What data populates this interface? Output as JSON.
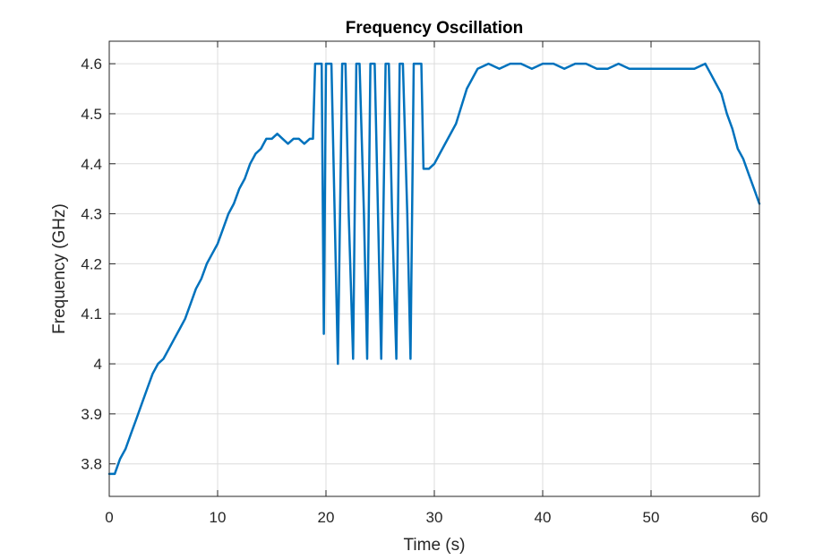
{
  "chart_data": {
    "type": "line",
    "title": "Frequency Oscillation",
    "xlabel": "Time (s)",
    "ylabel": "Frequency (GHz)",
    "xlim": [
      0,
      60
    ],
    "ylim": [
      3.735,
      4.645
    ],
    "xticks": [
      0,
      10,
      20,
      30,
      40,
      50,
      60
    ],
    "xtick_labels": [
      "0",
      "10",
      "20",
      "30",
      "40",
      "50",
      "60"
    ],
    "yticks": [
      3.8,
      3.9,
      4.0,
      4.1,
      4.2,
      4.3,
      4.4,
      4.5,
      4.6
    ],
    "ytick_labels": [
      "3.8",
      "3.9",
      "4",
      "4.1",
      "4.2",
      "4.3",
      "4.4",
      "4.5",
      "4.6"
    ],
    "grid": true,
    "line_color": "#0072BD",
    "series": [
      {
        "x": [
          0,
          0.5,
          1,
          1.5,
          2,
          2.5,
          3,
          3.5,
          4,
          4.5,
          5,
          5.5,
          6,
          6.5,
          7,
          7.5,
          8,
          8.5,
          9,
          9.5,
          10,
          10.5,
          11,
          11.5,
          12,
          12.5,
          13,
          13.5,
          14,
          14.5,
          15,
          15.5,
          16,
          16.5,
          17,
          17.5,
          18,
          18.5,
          18.8,
          19.0,
          19.6,
          19.8,
          20.0,
          20.5,
          20.8,
          21.1,
          21.5,
          21.8,
          22.1,
          22.5,
          22.8,
          23.1,
          23.5,
          23.8,
          24.1,
          24.5,
          24.8,
          25.1,
          25.5,
          25.8,
          26.1,
          26.5,
          26.8,
          27.1,
          27.5,
          27.8,
          28.1,
          28.5,
          28.8,
          29.0,
          29.5,
          30,
          30.5,
          31,
          32,
          33,
          34,
          35,
          36,
          37,
          38,
          39,
          40,
          41,
          42,
          43,
          44,
          45,
          46,
          47,
          48,
          49,
          50,
          51,
          52,
          53,
          54,
          55,
          55.5,
          56,
          56.5,
          57,
          57.5,
          58,
          58.5,
          59,
          59.5,
          60
        ],
        "y": [
          3.78,
          3.78,
          3.81,
          3.83,
          3.86,
          3.89,
          3.92,
          3.95,
          3.98,
          4.0,
          4.01,
          4.03,
          4.05,
          4.07,
          4.09,
          4.12,
          4.15,
          4.17,
          4.2,
          4.22,
          4.24,
          4.27,
          4.3,
          4.32,
          4.35,
          4.37,
          4.4,
          4.42,
          4.43,
          4.45,
          4.45,
          4.46,
          4.45,
          4.44,
          4.45,
          4.45,
          4.44,
          4.45,
          4.45,
          4.6,
          4.6,
          4.06,
          4.6,
          4.6,
          4.3,
          4.0,
          4.6,
          4.6,
          4.3,
          4.01,
          4.6,
          4.6,
          4.3,
          4.01,
          4.6,
          4.6,
          4.3,
          4.01,
          4.6,
          4.6,
          4.3,
          4.01,
          4.6,
          4.6,
          4.3,
          4.01,
          4.6,
          4.6,
          4.6,
          4.39,
          4.39,
          4.4,
          4.42,
          4.44,
          4.48,
          4.55,
          4.59,
          4.6,
          4.59,
          4.6,
          4.6,
          4.59,
          4.6,
          4.6,
          4.59,
          4.6,
          4.6,
          4.59,
          4.59,
          4.6,
          4.59,
          4.59,
          4.59,
          4.59,
          4.59,
          4.59,
          4.59,
          4.6,
          4.58,
          4.56,
          4.54,
          4.5,
          4.47,
          4.43,
          4.41,
          4.38,
          4.35,
          4.32
        ]
      }
    ]
  }
}
